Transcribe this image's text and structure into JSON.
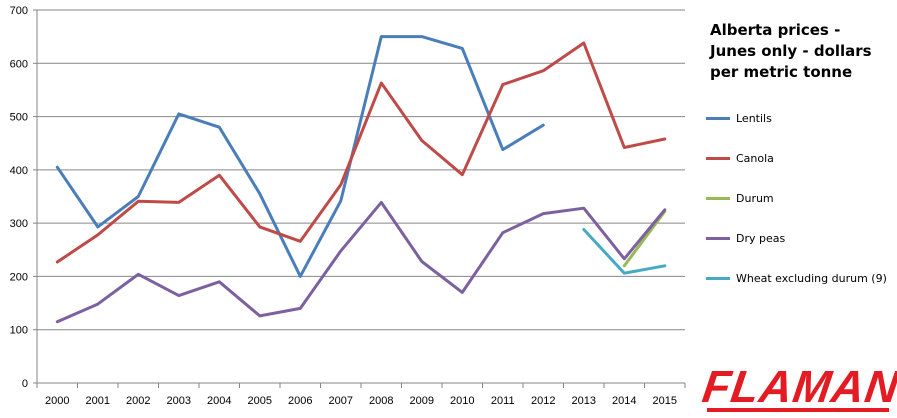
{
  "chart_data": {
    "type": "line",
    "title_lines": [
      "Alberta prices -",
      "Junes only - dollars",
      "per metric tonne"
    ],
    "categories": [
      "2000",
      "2001",
      "2002",
      "2003",
      "2004",
      "2005",
      "2006",
      "2007",
      "2008",
      "2009",
      "2010",
      "2011",
      "2012",
      "2013",
      "2014",
      "2015"
    ],
    "ylim": [
      0,
      700
    ],
    "yticks": [
      0,
      100,
      200,
      300,
      400,
      500,
      600,
      700
    ],
    "grid": "horizontal",
    "legend_position": "right",
    "series": [
      {
        "name": "Lentils",
        "color": "#4a7ebb",
        "values": [
          405,
          293,
          350,
          505,
          480,
          355,
          200,
          342,
          650,
          650,
          628,
          438,
          484,
          null,
          null,
          null
        ]
      },
      {
        "name": "Canola",
        "color": "#be4b48",
        "values": [
          227,
          278,
          341,
          339,
          390,
          293,
          266,
          372,
          563,
          455,
          391,
          560,
          586,
          638,
          442,
          458
        ]
      },
      {
        "name": "Durum",
        "color": "#98b954",
        "values": [
          null,
          null,
          null,
          null,
          null,
          null,
          null,
          null,
          null,
          null,
          null,
          null,
          null,
          null,
          220,
          322
        ]
      },
      {
        "name": "Dry peas",
        "color": "#7d60a0",
        "values": [
          115,
          148,
          204,
          164,
          190,
          126,
          140,
          248,
          339,
          228,
          170,
          282,
          318,
          328,
          233,
          325
        ]
      },
      {
        "name": "Wheat excluding durum (9)",
        "color": "#46aac5",
        "values": [
          null,
          null,
          null,
          null,
          null,
          null,
          null,
          null,
          null,
          null,
          null,
          null,
          null,
          288,
          206,
          220
        ]
      }
    ]
  },
  "logo": {
    "text": "FLAMAN",
    "color": "#e31b23"
  }
}
